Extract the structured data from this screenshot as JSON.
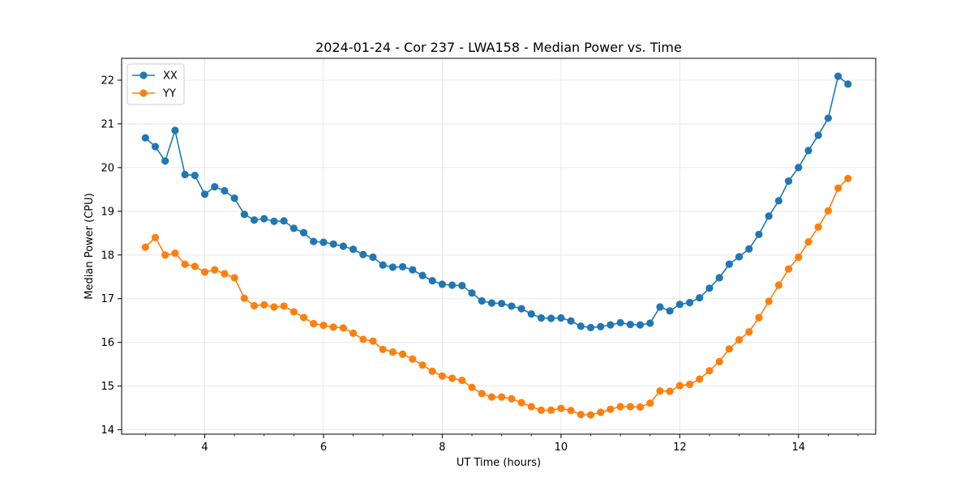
{
  "chart_data": {
    "type": "line",
    "title": "2024-01-24 - Cor 237 - LWA158 - Median Power vs. Time",
    "xlabel": "UT Time (hours)",
    "ylabel": "Median Power (CPU)",
    "xlim": [
      2.6,
      15.3
    ],
    "ylim": [
      13.9,
      22.5
    ],
    "xticks": [
      4,
      6,
      8,
      10,
      12,
      14
    ],
    "yticks": [
      14,
      15,
      16,
      17,
      18,
      19,
      20,
      21,
      22
    ],
    "grid": true,
    "legend_position": "top-left",
    "x": [
      3.0,
      3.167,
      3.333,
      3.5,
      3.667,
      3.833,
      4.0,
      4.167,
      4.333,
      4.5,
      4.667,
      4.833,
      5.0,
      5.167,
      5.333,
      5.5,
      5.667,
      5.833,
      6.0,
      6.167,
      6.333,
      6.5,
      6.667,
      6.833,
      7.0,
      7.167,
      7.333,
      7.5,
      7.667,
      7.833,
      8.0,
      8.167,
      8.333,
      8.5,
      8.667,
      8.833,
      9.0,
      9.167,
      9.333,
      9.5,
      9.667,
      9.833,
      10.0,
      10.167,
      10.333,
      10.5,
      10.667,
      10.833,
      11.0,
      11.167,
      11.333,
      11.5,
      11.667,
      11.833,
      12.0,
      12.167,
      12.333,
      12.5,
      12.667,
      12.833,
      13.0,
      13.167,
      13.333,
      13.5,
      13.667,
      13.833,
      14.0,
      14.167,
      14.333,
      14.5,
      14.667,
      14.833
    ],
    "series": [
      {
        "name": "XX",
        "color": "#1f77b4",
        "values": [
          20.68,
          20.48,
          20.15,
          20.85,
          19.84,
          19.82,
          19.39,
          19.56,
          19.47,
          19.3,
          18.93,
          18.8,
          18.83,
          18.77,
          18.78,
          18.61,
          18.51,
          18.31,
          18.29,
          18.25,
          18.2,
          18.13,
          18.01,
          17.95,
          17.77,
          17.72,
          17.73,
          17.66,
          17.53,
          17.41,
          17.33,
          17.31,
          17.3,
          17.13,
          16.95,
          16.9,
          16.89,
          16.83,
          16.77,
          16.65,
          16.56,
          16.55,
          16.56,
          16.49,
          16.37,
          16.34,
          16.36,
          16.4,
          16.45,
          16.41,
          16.4,
          16.44,
          16.81,
          16.72,
          16.87,
          16.91,
          17.02,
          17.24,
          17.48,
          17.79,
          17.96,
          18.14,
          18.47,
          18.89,
          19.24,
          19.69,
          20.0,
          20.39,
          20.74,
          21.13,
          22.09,
          21.91
        ]
      },
      {
        "name": "YY",
        "color": "#ff7f0e",
        "values": [
          18.18,
          18.4,
          18.0,
          18.04,
          17.79,
          17.74,
          17.61,
          17.66,
          17.57,
          17.48,
          17.01,
          16.84,
          16.86,
          16.81,
          16.83,
          16.7,
          16.57,
          16.43,
          16.39,
          16.35,
          16.33,
          16.21,
          16.07,
          16.03,
          15.84,
          15.78,
          15.73,
          15.62,
          15.48,
          15.34,
          15.23,
          15.18,
          15.13,
          14.97,
          14.83,
          14.75,
          14.75,
          14.71,
          14.62,
          14.53,
          14.45,
          14.45,
          14.49,
          14.44,
          14.35,
          14.34,
          14.4,
          14.47,
          14.53,
          14.53,
          14.52,
          14.61,
          14.89,
          14.88,
          15.01,
          15.04,
          15.16,
          15.35,
          15.56,
          15.85,
          16.06,
          16.24,
          16.57,
          16.94,
          17.31,
          17.68,
          17.95,
          18.3,
          18.64,
          19.01,
          19.53,
          19.75
        ]
      }
    ]
  }
}
